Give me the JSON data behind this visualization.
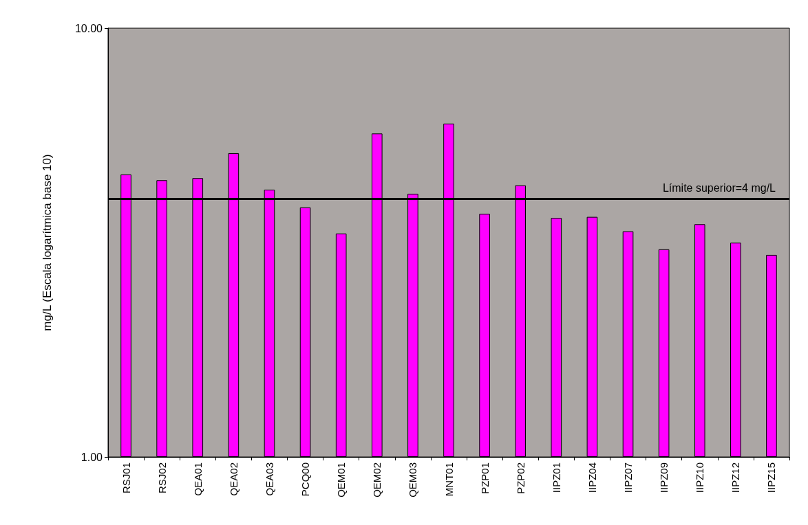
{
  "chart_data": {
    "type": "bar",
    "ylabel": "mg/L (Escala logarítmica base 10)",
    "categories": [
      "RSJ01",
      "RSJ02",
      "QEA01",
      "QEA02",
      "QEA03",
      "PCQ00",
      "QEM01",
      "QEM02",
      "QEM03",
      "MNT01",
      "PZP01",
      "PZP02",
      "IIPZ01",
      "IIPZ04",
      "IIPZ07",
      "IIPZ09",
      "IIPZ10",
      "IIPZ12",
      "IIPZ15"
    ],
    "values": [
      4.56,
      4.42,
      4.47,
      5.11,
      4.2,
      3.82,
      3.32,
      5.68,
      4.11,
      5.99,
      3.69,
      4.3,
      3.61,
      3.63,
      3.36,
      3.05,
      3.49,
      3.16,
      2.96
    ],
    "color": "#ff00ff",
    "log": "y",
    "ylim": [
      1,
      10
    ],
    "yticks": [
      {
        "value": 1,
        "label": "1.00"
      },
      {
        "value": 10,
        "label": "10.00"
      }
    ],
    "grid": false,
    "ref_lines": [
      {
        "axis": "y",
        "value": 4,
        "label": "Límite superior=4 mg/L",
        "color": "#000000",
        "line_style": "solid"
      }
    ]
  }
}
